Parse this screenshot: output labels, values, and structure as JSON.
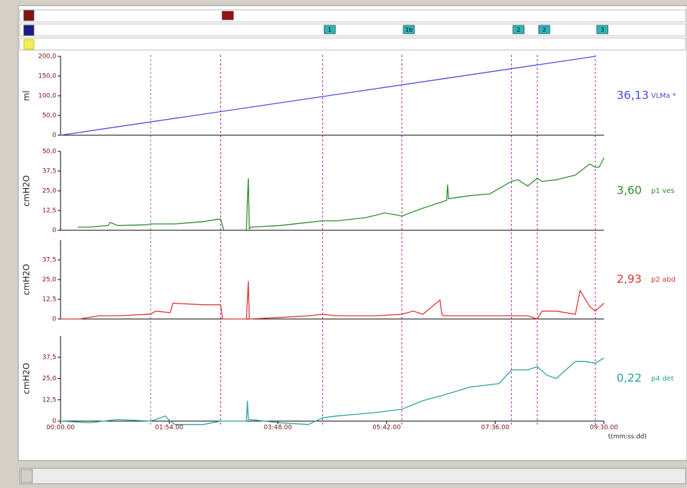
{
  "xlim": [
    0,
    570
  ],
  "events": [
    {
      "t": 94.5,
      "style": "plain"
    },
    {
      "t": 168,
      "row": 0,
      "color": "#9b1010"
    },
    {
      "t": 275,
      "row": 1,
      "label": "1",
      "color": "#2bb5b5"
    },
    {
      "t": 358,
      "row": 1,
      "label": "1b",
      "color": "#2bb5b5"
    },
    {
      "t": 473,
      "row": 1,
      "label": "2",
      "color": "#2bb5b5"
    },
    {
      "t": 500,
      "row": 1,
      "label": "2",
      "color": "#2bb5b5"
    },
    {
      "t": 561,
      "row": 1,
      "label": "3",
      "color": "#2bb5b5"
    }
  ],
  "chart_data": [
    {
      "type": "line",
      "y_label": "ml",
      "ylim": [
        0,
        200
      ],
      "yticks": [
        0,
        {
          "value": 50,
          "label": "50,0"
        },
        {
          "value": 100,
          "label": "100,0"
        },
        {
          "value": 150,
          "label": "150,0"
        },
        {
          "value": 200,
          "label": "200,0"
        }
      ],
      "x": [
        0,
        561
      ],
      "series": [
        {
          "name": "VLMa *",
          "readout": "36,13",
          "color": "#4b4bdf",
          "values": [
            0,
            200
          ]
        }
      ]
    },
    {
      "type": "line",
      "y_label": "cmH2O",
      "ylim": [
        0,
        50
      ],
      "yticks": [
        0,
        {
          "value": 12.5,
          "label": "12,5"
        },
        {
          "value": 25,
          "label": "25,0"
        },
        {
          "value": 37.5,
          "label": "37,5"
        },
        {
          "value": 50,
          "label": "50,0"
        }
      ],
      "x": [
        18,
        30,
        50,
        52,
        60,
        90,
        94,
        120,
        150,
        165,
        168,
        171,
        185,
        195,
        196,
        197,
        198,
        200,
        230,
        260,
        275,
        290,
        320,
        340,
        350,
        358,
        380,
        400,
        405,
        406,
        407,
        430,
        450,
        473,
        480,
        490,
        500,
        505,
        520,
        540,
        555,
        561,
        565,
        570
      ],
      "series": [
        {
          "name": "p1 ves",
          "readout": "3,60",
          "color": "#2e8b2e",
          "values": [
            2,
            2,
            3,
            5,
            3,
            3.5,
            4,
            4,
            5.5,
            7,
            7,
            0.5,
            null,
            0,
            19,
            33,
            1,
            2,
            3,
            5,
            6,
            6,
            8,
            11,
            10,
            9,
            14,
            18,
            19,
            29,
            20,
            22,
            23,
            31,
            32,
            28,
            33,
            31,
            32,
            35,
            42,
            40,
            40,
            46
          ]
        }
      ]
    },
    {
      "type": "line",
      "y_label": "cmH2O",
      "ylim": [
        0,
        50
      ],
      "yticks": [
        0,
        {
          "value": 12.5,
          "label": "12,5"
        },
        {
          "value": 25,
          "label": "25,0"
        },
        {
          "value": 37.5,
          "label": "37,5"
        }
      ],
      "x": [
        0,
        20,
        40,
        60,
        90,
        94,
        100,
        115,
        118,
        150,
        165,
        168,
        170,
        195,
        196,
        197,
        198,
        230,
        260,
        275,
        290,
        330,
        358,
        370,
        380,
        398,
        400,
        402,
        430,
        473,
        490,
        500,
        505,
        520,
        540,
        545,
        555,
        561,
        570
      ],
      "series": [
        {
          "name": "p2 abd",
          "readout": "2,93",
          "color": "#e03333",
          "values": [
            0,
            0,
            2,
            2,
            3,
            3,
            5,
            4,
            10,
            9,
            9,
            9,
            0,
            0,
            12,
            24,
            0,
            1,
            2,
            3,
            2,
            2,
            3,
            5,
            3,
            12,
            3,
            2,
            2,
            2,
            2,
            0,
            5,
            5,
            3,
            18,
            8,
            5,
            10
          ]
        }
      ]
    },
    {
      "type": "line",
      "y_label": "cmH2O",
      "ylim": [
        0,
        50
      ],
      "yticks": [
        0,
        {
          "value": 12.5,
          "label": "12,5"
        },
        {
          "value": 25,
          "label": "25,0"
        },
        {
          "value": 37.5,
          "label": "37,5"
        }
      ],
      "x_label": "t(mm:ss.dd)",
      "xticks": [
        {
          "value": 0,
          "label": "00:00.00"
        },
        {
          "value": 114,
          "label": "01:54.00"
        },
        {
          "value": 228,
          "label": "03:48.00"
        },
        {
          "value": 342,
          "label": "05:42.00"
        },
        {
          "value": 456,
          "label": "07:36.00"
        },
        {
          "value": 570,
          "label": "09:30.00"
        }
      ],
      "x": [
        0,
        30,
        60,
        94,
        100,
        110,
        115,
        120,
        150,
        168,
        195,
        196,
        197,
        198,
        230,
        260,
        275,
        290,
        330,
        358,
        380,
        400,
        430,
        460,
        473,
        490,
        500,
        510,
        520,
        530,
        540,
        550,
        561,
        570
      ],
      "series": [
        {
          "name": "p4 det",
          "readout": "0,22",
          "color": "#2aa0a0",
          "values": [
            0,
            -1,
            1,
            0,
            1,
            3,
            0,
            -2,
            -2,
            0,
            0,
            12,
            1,
            1,
            -1,
            -2,
            2,
            3,
            5,
            7,
            12,
            15,
            20,
            22,
            30,
            30,
            32,
            27,
            25,
            30,
            35,
            35,
            34,
            37
          ]
        }
      ]
    }
  ]
}
